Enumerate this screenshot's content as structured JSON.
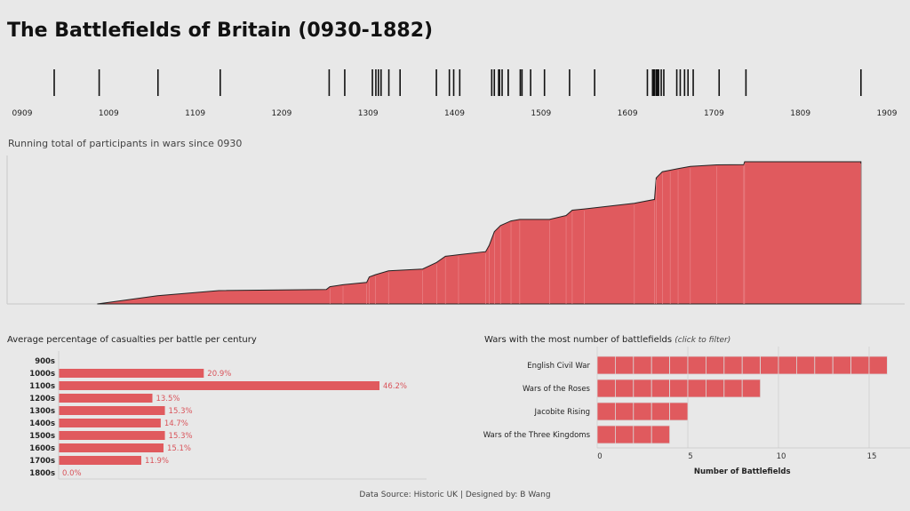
{
  "title": "The Battlefields of Britain (0930-1882)",
  "colors": {
    "bar": "#e05a5e",
    "bar_stroke": "#d9d9d9",
    "label": "#d9535a",
    "background": "#e8e8e8"
  },
  "chart_data": [
    {
      "type": "scatter",
      "mark": "tick",
      "x_ticks": [
        "0909",
        "1009",
        "1109",
        "1209",
        "1309",
        "1409",
        "1509",
        "1609",
        "1709",
        "1809",
        "1909"
      ],
      "xlim": [
        909,
        1909
      ],
      "battle_years": [
        946,
        998,
        1066,
        1138,
        1264,
        1282,
        1314,
        1318,
        1321,
        1324,
        1333,
        1346,
        1388,
        1403,
        1408,
        1415,
        1452,
        1455,
        1460,
        1461,
        1464,
        1471,
        1471,
        1485,
        1487,
        1497,
        1513,
        1542,
        1571,
        1632,
        1638,
        1639,
        1640,
        1642,
        1643,
        1644,
        1645,
        1648,
        1651,
        1666,
        1670,
        1675,
        1679,
        1685,
        1715,
        1746,
        1879
      ]
    },
    {
      "type": "area",
      "title": "Running total of participants in wars since 0930",
      "xlim": [
        909,
        1935
      ],
      "points": [
        [
          1012,
          0
        ],
        [
          1081,
          5.3
        ],
        [
          1151,
          8.7
        ],
        [
          1274,
          9.4
        ],
        [
          1278,
          11.2
        ],
        [
          1293,
          12.5
        ],
        [
          1320,
          14
        ],
        [
          1323,
          17.5
        ],
        [
          1330,
          19
        ],
        [
          1345,
          21.5
        ],
        [
          1384,
          22.7
        ],
        [
          1400,
          27
        ],
        [
          1410,
          31
        ],
        [
          1425,
          32
        ],
        [
          1456,
          34
        ],
        [
          1460,
          38
        ],
        [
          1466,
          47
        ],
        [
          1473,
          51
        ],
        [
          1485,
          54
        ],
        [
          1495,
          55
        ],
        [
          1529,
          55
        ],
        [
          1548,
          57.5
        ],
        [
          1555,
          61
        ],
        [
          1569,
          61.8
        ],
        [
          1626,
          65.5
        ],
        [
          1649,
          68
        ],
        [
          1651,
          82
        ],
        [
          1658,
          86
        ],
        [
          1667,
          87
        ],
        [
          1676,
          88
        ],
        [
          1690,
          89.5
        ],
        [
          1720,
          90.5
        ],
        [
          1751,
          90.6
        ],
        [
          1752,
          92.5
        ],
        [
          1885,
          92.5
        ],
        [
          1885,
          0
        ]
      ]
    },
    {
      "type": "bar",
      "orientation": "horizontal",
      "title": "Average percentage of casualties per battle per century",
      "categories": [
        "900s",
        "1000s",
        "1100s",
        "1200s",
        "1300s",
        "1400s",
        "1500s",
        "1600s",
        "1700s",
        "1800s"
      ],
      "values": [
        null,
        20.9,
        46.2,
        13.5,
        15.3,
        14.7,
        15.3,
        15.1,
        11.9,
        0.0
      ],
      "value_labels": [
        "",
        "20.9%",
        "46.2%",
        "13.5%",
        "15.3%",
        "14.7%",
        "15.3%",
        "15.1%",
        "11.9%",
        "0.0%"
      ],
      "xlim": [
        0,
        50
      ]
    },
    {
      "type": "bar",
      "orientation": "horizontal",
      "title": "Wars with the most number of battlefields",
      "title_hint": "(click to filter)",
      "categories": [
        "English Civil War",
        "Wars of the Roses",
        "Jacobite Rising",
        "Wars of the Three Kingdoms"
      ],
      "values": [
        16,
        9,
        5,
        4
      ],
      "x_ticks": [
        0,
        5,
        10,
        15
      ],
      "xlim": [
        0,
        17
      ],
      "xlabel": "Number of Battlefields",
      "grid": true
    }
  ],
  "footer": "Data Source: Historic UK  |  Designed by: B Wang"
}
